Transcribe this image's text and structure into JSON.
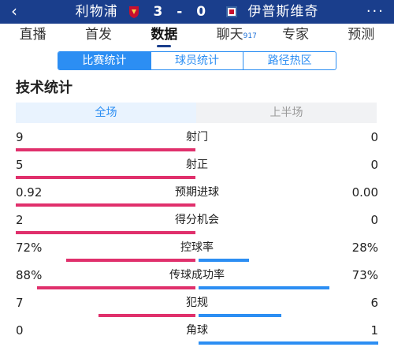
{
  "header": {
    "back_icon": "chevron-left-icon",
    "home_team": "利物浦",
    "home_score": "3",
    "separator": "-",
    "away_score": "0",
    "away_team": "伊普斯维奇",
    "more_icon": "ellipsis-icon",
    "home_crest_color": "#c8102e",
    "away_crest_color": "#3a64a3"
  },
  "nav": {
    "tabs": [
      {
        "label": "直播"
      },
      {
        "label": "首发"
      },
      {
        "label": "数据"
      },
      {
        "label": "聊天",
        "badge": "917"
      },
      {
        "label": "专家"
      },
      {
        "label": "预测"
      }
    ],
    "active": "数据"
  },
  "subtabs": [
    {
      "label": "比赛统计"
    },
    {
      "label": "球员统计"
    },
    {
      "label": "路径热区"
    }
  ],
  "section_title": "技术统计",
  "period": {
    "options": [
      {
        "label": "全场"
      },
      {
        "label": "上半场"
      }
    ],
    "active": "全场"
  },
  "colors": {
    "home_bar": "#e0306c",
    "away_bar": "#2c8ef3",
    "header_bg": "#1a3e8c"
  },
  "stats": [
    {
      "label": "射门",
      "home": "9",
      "away": "0",
      "home_share": 1.0,
      "away_share": 0.0
    },
    {
      "label": "射正",
      "home": "5",
      "away": "0",
      "home_share": 1.0,
      "away_share": 0.0
    },
    {
      "label": "预期进球",
      "home": "0.92",
      "away": "0.00",
      "home_share": 1.0,
      "away_share": 0.0
    },
    {
      "label": "得分机会",
      "home": "2",
      "away": "0",
      "home_share": 1.0,
      "away_share": 0.0
    },
    {
      "label": "控球率",
      "home": "72%",
      "away": "28%",
      "home_share": 0.72,
      "away_share": 0.28
    },
    {
      "label": "传球成功率",
      "home": "88%",
      "away": "73%",
      "home_share": 0.88,
      "away_share": 0.73
    },
    {
      "label": "犯规",
      "home": "7",
      "away": "6",
      "home_share": 0.54,
      "away_share": 0.46
    },
    {
      "label": "角球",
      "home": "0",
      "away": "1",
      "home_share": 0.0,
      "away_share": 1.0
    }
  ]
}
